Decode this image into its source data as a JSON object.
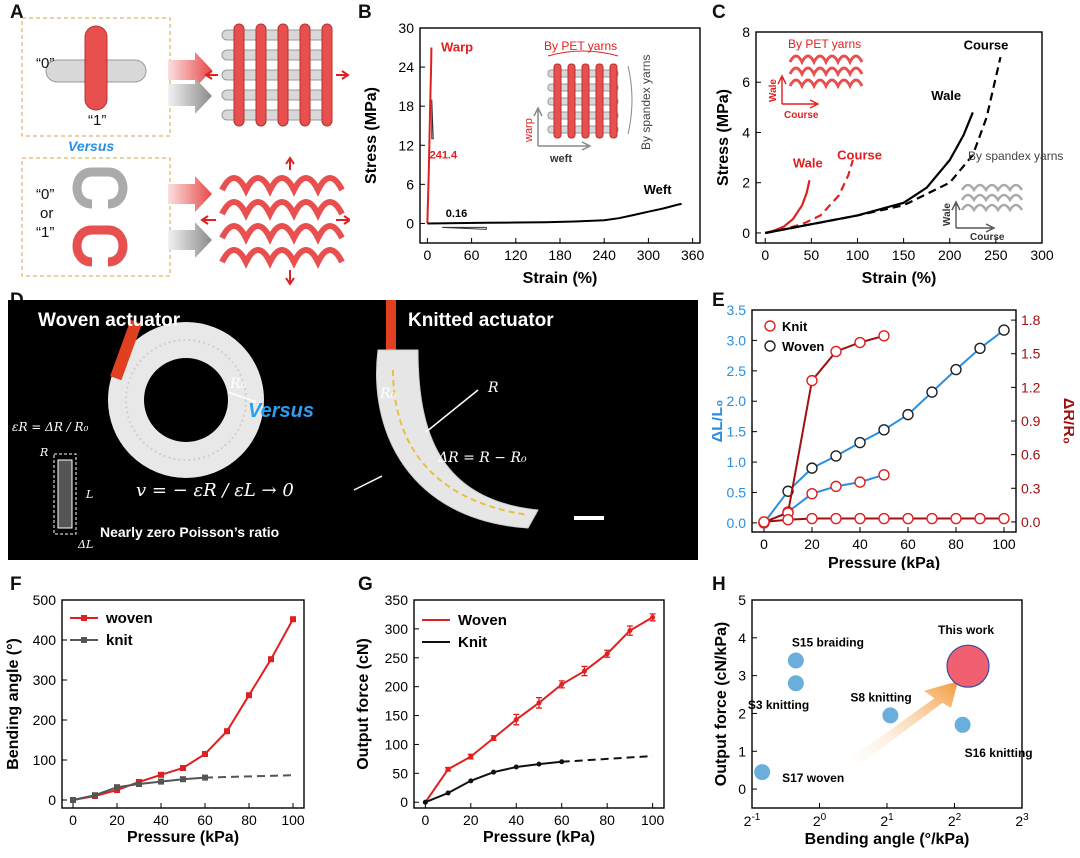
{
  "panel_labels": {
    "a": "A",
    "b": "B",
    "c": "C",
    "d": "D",
    "e": "E",
    "f": "F",
    "g": "G",
    "h": "H"
  },
  "panel_a": {
    "zero": "“0”",
    "one": "“1”",
    "versus": "Versus",
    "zero_or": "“0”",
    "or": "or",
    "one_or": "“1”"
  },
  "panel_d": {
    "woven_title": "Woven actuator",
    "knitted_title": "Knitted actuator",
    "versus": "Versus",
    "r0_woven": "R₀",
    "r0_knit": "R₀",
    "r_knit": "R",
    "delta_r_eq": "ΔR = R − R₀",
    "eps_r_eq": "εR = ΔR / R₀",
    "poisson_eq": "v = − εR / εL → 0",
    "r_small": "R",
    "l_small": "L",
    "dl_small": "ΔL",
    "caption": "Nearly zero Poisson’s ratio"
  },
  "chart_data": [
    {
      "id": "B",
      "type": "line",
      "xlabel": "Strain (%)",
      "ylabel": "Stress (MPa)",
      "xlim": [
        -10,
        370
      ],
      "ylim": [
        -3,
        30
      ],
      "xticks": [
        0,
        60,
        120,
        180,
        240,
        300,
        360
      ],
      "yticks": [
        0,
        6,
        12,
        18,
        24,
        30
      ],
      "series": [
        {
          "name": "Warp",
          "color": "#e02020",
          "x": [
            0,
            0.5,
            1,
            2,
            3,
            4,
            5,
            5.5
          ],
          "y": [
            0,
            2,
            4,
            8,
            14,
            19,
            24,
            27
          ]
        },
        {
          "name": "Weft",
          "color": "#000000",
          "x": [
            0,
            40,
            80,
            120,
            160,
            200,
            240,
            260,
            280,
            300,
            320,
            340,
            345
          ],
          "y": [
            0,
            0.05,
            0.1,
            0.15,
            0.2,
            0.3,
            0.5,
            0.8,
            1.3,
            1.8,
            2.3,
            2.9,
            3.0
          ]
        }
      ],
      "annotations": {
        "warp_slope": "241.4",
        "weft_slope": "0.16"
      },
      "inset": {
        "top_label": "By PET yarns",
        "right_label": "By spandex yarns",
        "warp": "warp",
        "weft": "weft"
      }
    },
    {
      "id": "C",
      "type": "line",
      "xlabel": "Strain (%)",
      "ylabel": "Stress (MPa)",
      "xlim": [
        -10,
        300
      ],
      "ylim": [
        -0.4,
        8
      ],
      "xticks": [
        0,
        50,
        100,
        150,
        200,
        250,
        300
      ],
      "yticks": [
        0,
        2,
        4,
        6,
        8
      ],
      "series": [
        {
          "name": "Wale",
          "group": "By PET yarns",
          "color": "#e02020",
          "dash": false,
          "x": [
            0,
            10,
            20,
            30,
            40,
            45,
            48
          ],
          "y": [
            0,
            0.1,
            0.25,
            0.55,
            1.1,
            1.6,
            2.1
          ]
        },
        {
          "name": "Course",
          "group": "By PET yarns",
          "color": "#e02020",
          "dash": true,
          "x": [
            0,
            20,
            40,
            60,
            80,
            90,
            95
          ],
          "y": [
            0,
            0.15,
            0.35,
            0.7,
            1.5,
            2.3,
            2.9
          ]
        },
        {
          "name": "Wale",
          "group": "By spandex yarns",
          "color": "#000000",
          "dash": false,
          "x": [
            0,
            50,
            100,
            150,
            175,
            200,
            215,
            225
          ],
          "y": [
            0,
            0.35,
            0.7,
            1.2,
            1.8,
            2.9,
            3.9,
            4.8
          ]
        },
        {
          "name": "Course",
          "group": "By spandex yarns",
          "color": "#000000",
          "dash": true,
          "x": [
            0,
            50,
            100,
            150,
            200,
            225,
            240,
            255
          ],
          "y": [
            0,
            0.35,
            0.7,
            1.1,
            2.0,
            3.1,
            4.6,
            7.0
          ]
        }
      ],
      "inset_top": {
        "title": "By PET yarns",
        "wale": "Wale",
        "course": "Course"
      },
      "inset_bottom": {
        "title": "By spandex yarns",
        "wale": "Wale",
        "course": "Course"
      }
    },
    {
      "id": "E",
      "type": "line",
      "xlabel": "Pressure (kPa)",
      "ylabel_left": "ΔL/L₀",
      "ylabel_right": "ΔR/R₀",
      "xlim": [
        -5,
        105
      ],
      "ylim_left": [
        -0.15,
        3.5
      ],
      "ylim_right": [
        -0.09,
        1.89
      ],
      "xticks": [
        0,
        20,
        40,
        60,
        80,
        100
      ],
      "yticks_left": [
        0.0,
        0.5,
        1.0,
        1.5,
        2.0,
        2.5,
        3.0,
        3.5
      ],
      "yticks_left_labels": [
        "0.0",
        "0.5",
        "1.0",
        "1.5",
        "2.0",
        "2.5",
        "3.0",
        "3.5"
      ],
      "yticks_right": [
        0.0,
        0.3,
        0.6,
        0.9,
        1.2,
        1.5,
        1.8
      ],
      "yticks_right_labels": [
        "0.0",
        "0.3",
        "0.6",
        "0.9",
        "1.2",
        "1.5",
        "1.8"
      ],
      "legend": [
        "Knit",
        "Woven"
      ],
      "series": [
        {
          "name": "Woven",
          "axis": "left",
          "line": "#2a8fe0",
          "marker": "#222222",
          "x": [
            0,
            10,
            20,
            30,
            40,
            50,
            60,
            70,
            80,
            90,
            100
          ],
          "y": [
            0.0,
            0.52,
            0.9,
            1.1,
            1.32,
            1.53,
            1.78,
            2.15,
            2.52,
            2.87,
            3.17
          ]
        },
        {
          "name": "Knit",
          "axis": "left",
          "line": "#2a8fe0",
          "marker": "#e02020",
          "x": [
            0,
            10,
            20,
            30,
            40,
            50
          ],
          "y": [
            0.0,
            0.18,
            0.48,
            0.6,
            0.67,
            0.79
          ]
        },
        {
          "name": "Knit",
          "axis": "right",
          "line": "#a01010",
          "marker": "#e02020",
          "x": [
            0,
            10,
            20,
            30,
            40,
            50
          ],
          "y": [
            0.0,
            0.08,
            1.26,
            1.52,
            1.6,
            1.66
          ]
        },
        {
          "name": "Woven",
          "axis": "right",
          "line": "#a01010",
          "marker": "#e02020",
          "x": [
            0,
            10,
            20,
            30,
            40,
            50,
            60,
            70,
            80,
            90,
            100
          ],
          "y": [
            0.0,
            0.02,
            0.03,
            0.03,
            0.03,
            0.03,
            0.03,
            0.03,
            0.03,
            0.03,
            0.03
          ]
        }
      ]
    },
    {
      "id": "F",
      "type": "line",
      "xlabel": "Pressure (kPa)",
      "ylabel": "Bending angle (°)",
      "xlim": [
        -5,
        105
      ],
      "ylim": [
        -20,
        500
      ],
      "xticks": [
        0,
        20,
        40,
        60,
        80,
        100
      ],
      "yticks": [
        0,
        100,
        200,
        300,
        400,
        500
      ],
      "series": [
        {
          "name": "woven",
          "color": "#e02020",
          "x": [
            0,
            10,
            20,
            30,
            40,
            50,
            60,
            70,
            80,
            90,
            100
          ],
          "y": [
            0,
            10,
            25,
            45,
            63,
            80,
            115,
            172,
            262,
            352,
            452
          ]
        },
        {
          "name": "knit",
          "color": "#555555",
          "x": [
            0,
            10,
            20,
            30,
            40,
            50,
            60
          ],
          "y": [
            0,
            12,
            32,
            40,
            46,
            52,
            56
          ]
        }
      ],
      "extrapolation": {
        "x": [
          60,
          100
        ],
        "y": [
          56,
          62
        ]
      }
    },
    {
      "id": "G",
      "type": "line",
      "xlabel": "Pressure (kPa)",
      "ylabel": "Output force (cN)",
      "xlim": [
        -5,
        105
      ],
      "ylim": [
        -10,
        350
      ],
      "xticks": [
        0,
        20,
        40,
        60,
        80,
        100
      ],
      "yticks": [
        0,
        50,
        100,
        150,
        200,
        250,
        300,
        350
      ],
      "series": [
        {
          "name": "Woven",
          "color": "#e02020",
          "x": [
            0,
            10,
            20,
            30,
            40,
            50,
            60,
            70,
            80,
            90,
            100
          ],
          "y": [
            0,
            57,
            79,
            111,
            143,
            172,
            204,
            227,
            257,
            297,
            320
          ],
          "err": [
            0,
            3,
            4,
            4,
            9,
            9,
            6,
            8,
            6,
            8,
            6
          ]
        },
        {
          "name": "Knit",
          "color": "#111111",
          "x": [
            0,
            10,
            20,
            30,
            40,
            50,
            60
          ],
          "y": [
            0,
            16,
            37,
            52,
            61,
            66,
            70
          ]
        }
      ],
      "extrapolation": {
        "x": [
          60,
          100
        ],
        "y": [
          70,
          80
        ]
      }
    },
    {
      "id": "H",
      "type": "scatter",
      "xlabel": "Bending angle (°/kPa)",
      "ylabel": "Output force (cN/kPa)",
      "xlim": [
        -1,
        3
      ],
      "ylim": [
        -0.5,
        5
      ],
      "xscale": "log2",
      "xticks": [
        -1,
        0,
        1,
        2,
        3
      ],
      "yticks": [
        0,
        1,
        2,
        3,
        4,
        5
      ],
      "points": [
        {
          "name": "S15 braiding",
          "x": -0.35,
          "y": 3.4,
          "color": "#6aaedb"
        },
        {
          "name": "S3 knitting",
          "x": -0.35,
          "y": 2.8,
          "color": "#6aaedb"
        },
        {
          "name": "S8 knitting",
          "x": 1.05,
          "y": 1.95,
          "color": "#6aaedb"
        },
        {
          "name": "S16 knitting",
          "x": 2.12,
          "y": 1.7,
          "color": "#6aaedb"
        },
        {
          "name": "S17 woven",
          "x": -0.85,
          "y": 0.45,
          "color": "#6aaedb"
        },
        {
          "name": "This work",
          "x": 2.2,
          "y": 3.25,
          "color": "#f06070"
        }
      ]
    }
  ]
}
